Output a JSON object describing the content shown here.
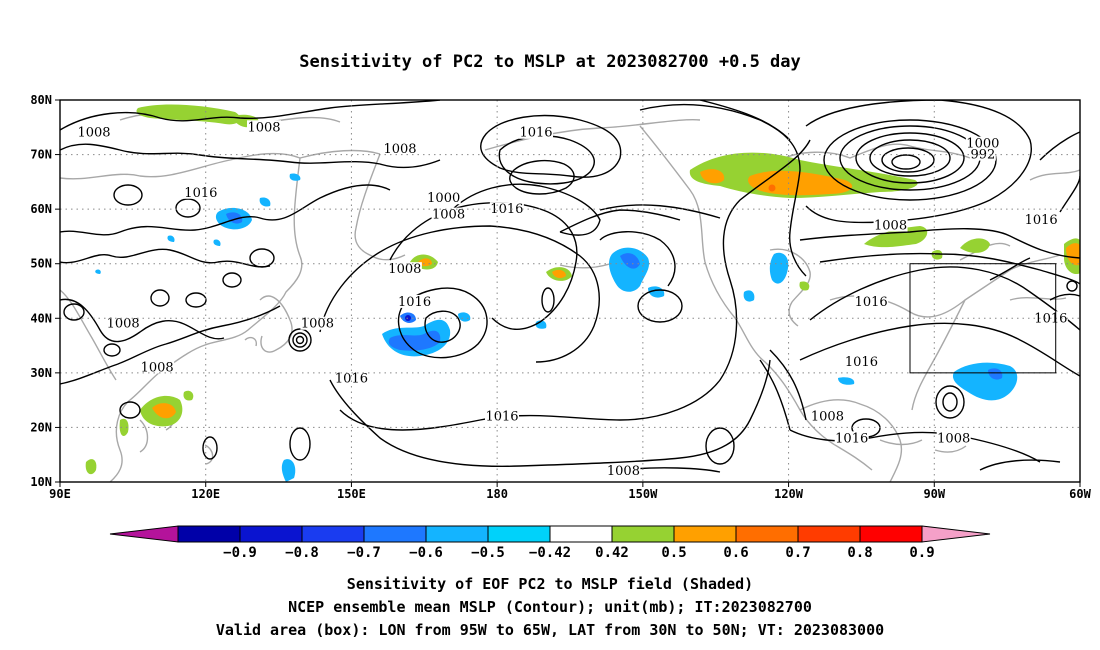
{
  "title": "Sensitivity of PC2 to MSLP at 2023082700 +0.5 day",
  "map": {
    "lon_range": [
      90,
      300
    ],
    "lat_range": [
      10,
      80
    ],
    "lat_ticks": [
      "80N",
      "70N",
      "60N",
      "50N",
      "40N",
      "30N",
      "20N",
      "10N"
    ],
    "lon_ticks": [
      "90E",
      "120E",
      "150E",
      "180",
      "150W",
      "120W",
      "90W",
      "60W"
    ],
    "grid": "dotted",
    "valid_box": {
      "lon": [
        265,
        295
      ],
      "lat": [
        30,
        50
      ]
    },
    "contour_labels": [
      {
        "text": "1008",
        "lon": 97,
        "lat": 74
      },
      {
        "text": "1008",
        "lon": 132,
        "lat": 75
      },
      {
        "text": "1016",
        "lon": 119,
        "lat": 63
      },
      {
        "text": "1008",
        "lon": 103,
        "lat": 39
      },
      {
        "text": "1008",
        "lon": 110,
        "lat": 31
      },
      {
        "text": "1008",
        "lon": 143,
        "lat": 39
      },
      {
        "text": "1008",
        "lon": 160,
        "lat": 71
      },
      {
        "text": "1000",
        "lon": 169,
        "lat": 62
      },
      {
        "text": "1008",
        "lon": 170,
        "lat": 59
      },
      {
        "text": "1016",
        "lon": 182,
        "lat": 60
      },
      {
        "text": "1008",
        "lon": 161,
        "lat": 49
      },
      {
        "text": "1016",
        "lon": 163,
        "lat": 43
      },
      {
        "text": "1016",
        "lon": 188,
        "lat": 74
      },
      {
        "text": "1000",
        "lon": 280,
        "lat": 72
      },
      {
        "text": "992",
        "lon": 280,
        "lat": 70
      },
      {
        "text": "1008",
        "lon": 261,
        "lat": 57
      },
      {
        "text": "1016",
        "lon": 292,
        "lat": 58
      },
      {
        "text": "1016",
        "lon": 257,
        "lat": 43
      },
      {
        "text": "1016",
        "lon": 255,
        "lat": 32
      },
      {
        "text": "1016",
        "lon": 294,
        "lat": 40
      },
      {
        "text": "1016",
        "lon": 150,
        "lat": 29
      },
      {
        "text": "1016",
        "lon": 181,
        "lat": 22
      },
      {
        "text": "1008",
        "lon": 248,
        "lat": 22
      },
      {
        "text": "1016",
        "lon": 253,
        "lat": 18
      },
      {
        "text": "1008",
        "lon": 274,
        "lat": 18
      },
      {
        "text": "1008",
        "lon": 206,
        "lat": 12
      }
    ]
  },
  "colorbar": {
    "labels": [
      "−0.9",
      "−0.8",
      "−0.7",
      "−0.6",
      "−0.5",
      "−0.42",
      "0.42",
      "0.5",
      "0.6",
      "0.7",
      "0.8",
      "0.9"
    ],
    "colors": [
      "#b4139b",
      "#0000a8",
      "#0a14d0",
      "#1a3cf0",
      "#1e78ff",
      "#14b4ff",
      "#00d2fa",
      "#ffffff",
      "#96d232",
      "#ffa000",
      "#ff6e00",
      "#ff3c00",
      "#ff0000",
      "#f5a0c8"
    ]
  },
  "caption": {
    "line1": "Sensitivity of EOF PC2 to MSLP field (Shaded)",
    "line2": "NCEP ensemble mean MSLP (Contour); unit(mb); IT:2023082700",
    "line3": "Valid area (box): LON from 95W to 65W, LAT from 30N to 50N; VT: 2023083000"
  }
}
